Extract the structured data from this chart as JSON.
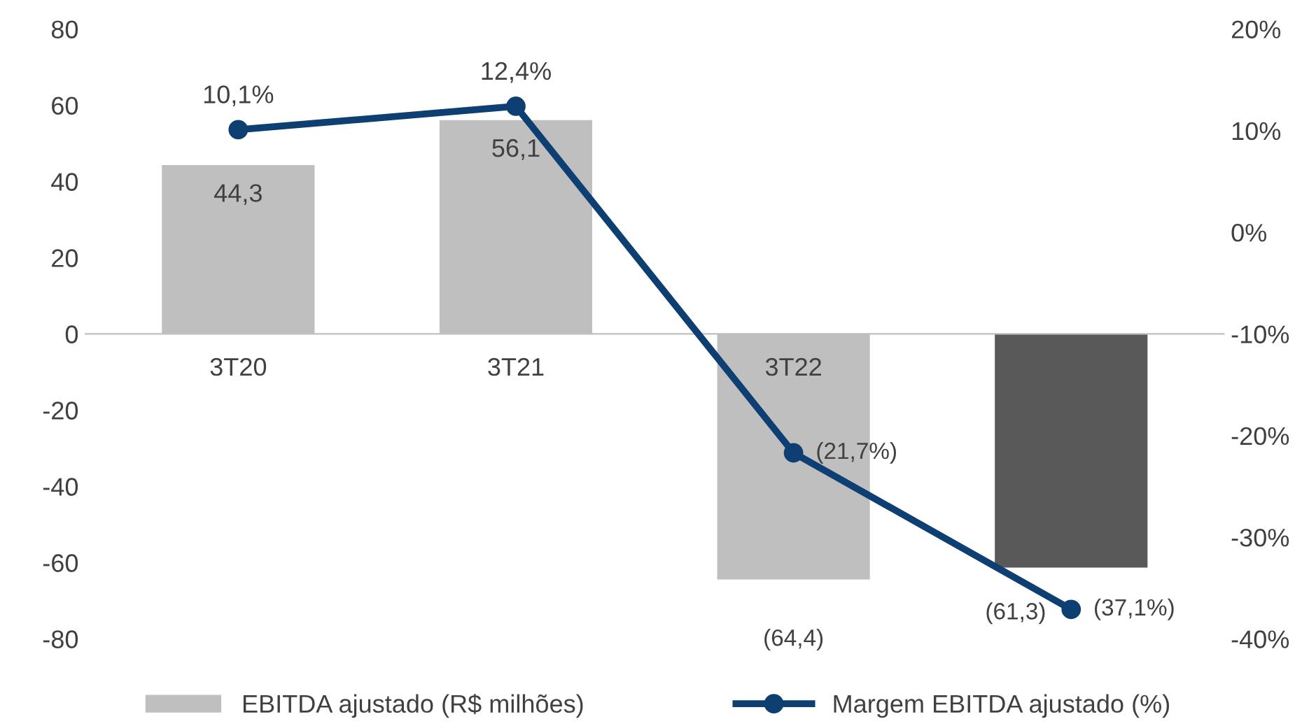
{
  "chart_data": {
    "type": "bar",
    "categories": [
      "3T20",
      "3T21",
      "3T22",
      null
    ],
    "series": [
      {
        "name": "EBITDA ajustado (R$ milhões)",
        "colors": [
          "#bfbfbf",
          "#bfbfbf",
          "#bfbfbf",
          "#595959"
        ],
        "values": [
          44.3,
          56.1,
          -64.4,
          -61.3
        ],
        "value_labels": [
          "44,3",
          "56,1",
          "(64,4)",
          "(61,3)"
        ]
      },
      {
        "name": "Margem EBITDA ajustado (%)",
        "type": "line",
        "axis": "y2",
        "color": "#0e3f73",
        "marker": "circle",
        "values": [
          10.1,
          12.4,
          -21.7,
          -37.1
        ],
        "value_labels": [
          "10,1%",
          "12,4%",
          "(21,7%)",
          "(37,1%)"
        ]
      }
    ],
    "ylim": [
      -80,
      80
    ],
    "yticks": [
      -80,
      -60,
      -40,
      -20,
      0,
      20,
      40,
      60,
      80
    ],
    "y2lim": [
      -40,
      20
    ],
    "y2ticks": [
      {
        "value": -40,
        "label": "-40%"
      },
      {
        "value": -30,
        "label": "-30%"
      },
      {
        "value": -20,
        "label": "-20%"
      },
      {
        "value": -10,
        "label": "-10%"
      },
      {
        "value": 0,
        "label": "0%"
      },
      {
        "value": 10,
        "label": "10%"
      },
      {
        "value": 20,
        "label": "20%"
      }
    ],
    "grid": false,
    "legend": "bottom"
  }
}
